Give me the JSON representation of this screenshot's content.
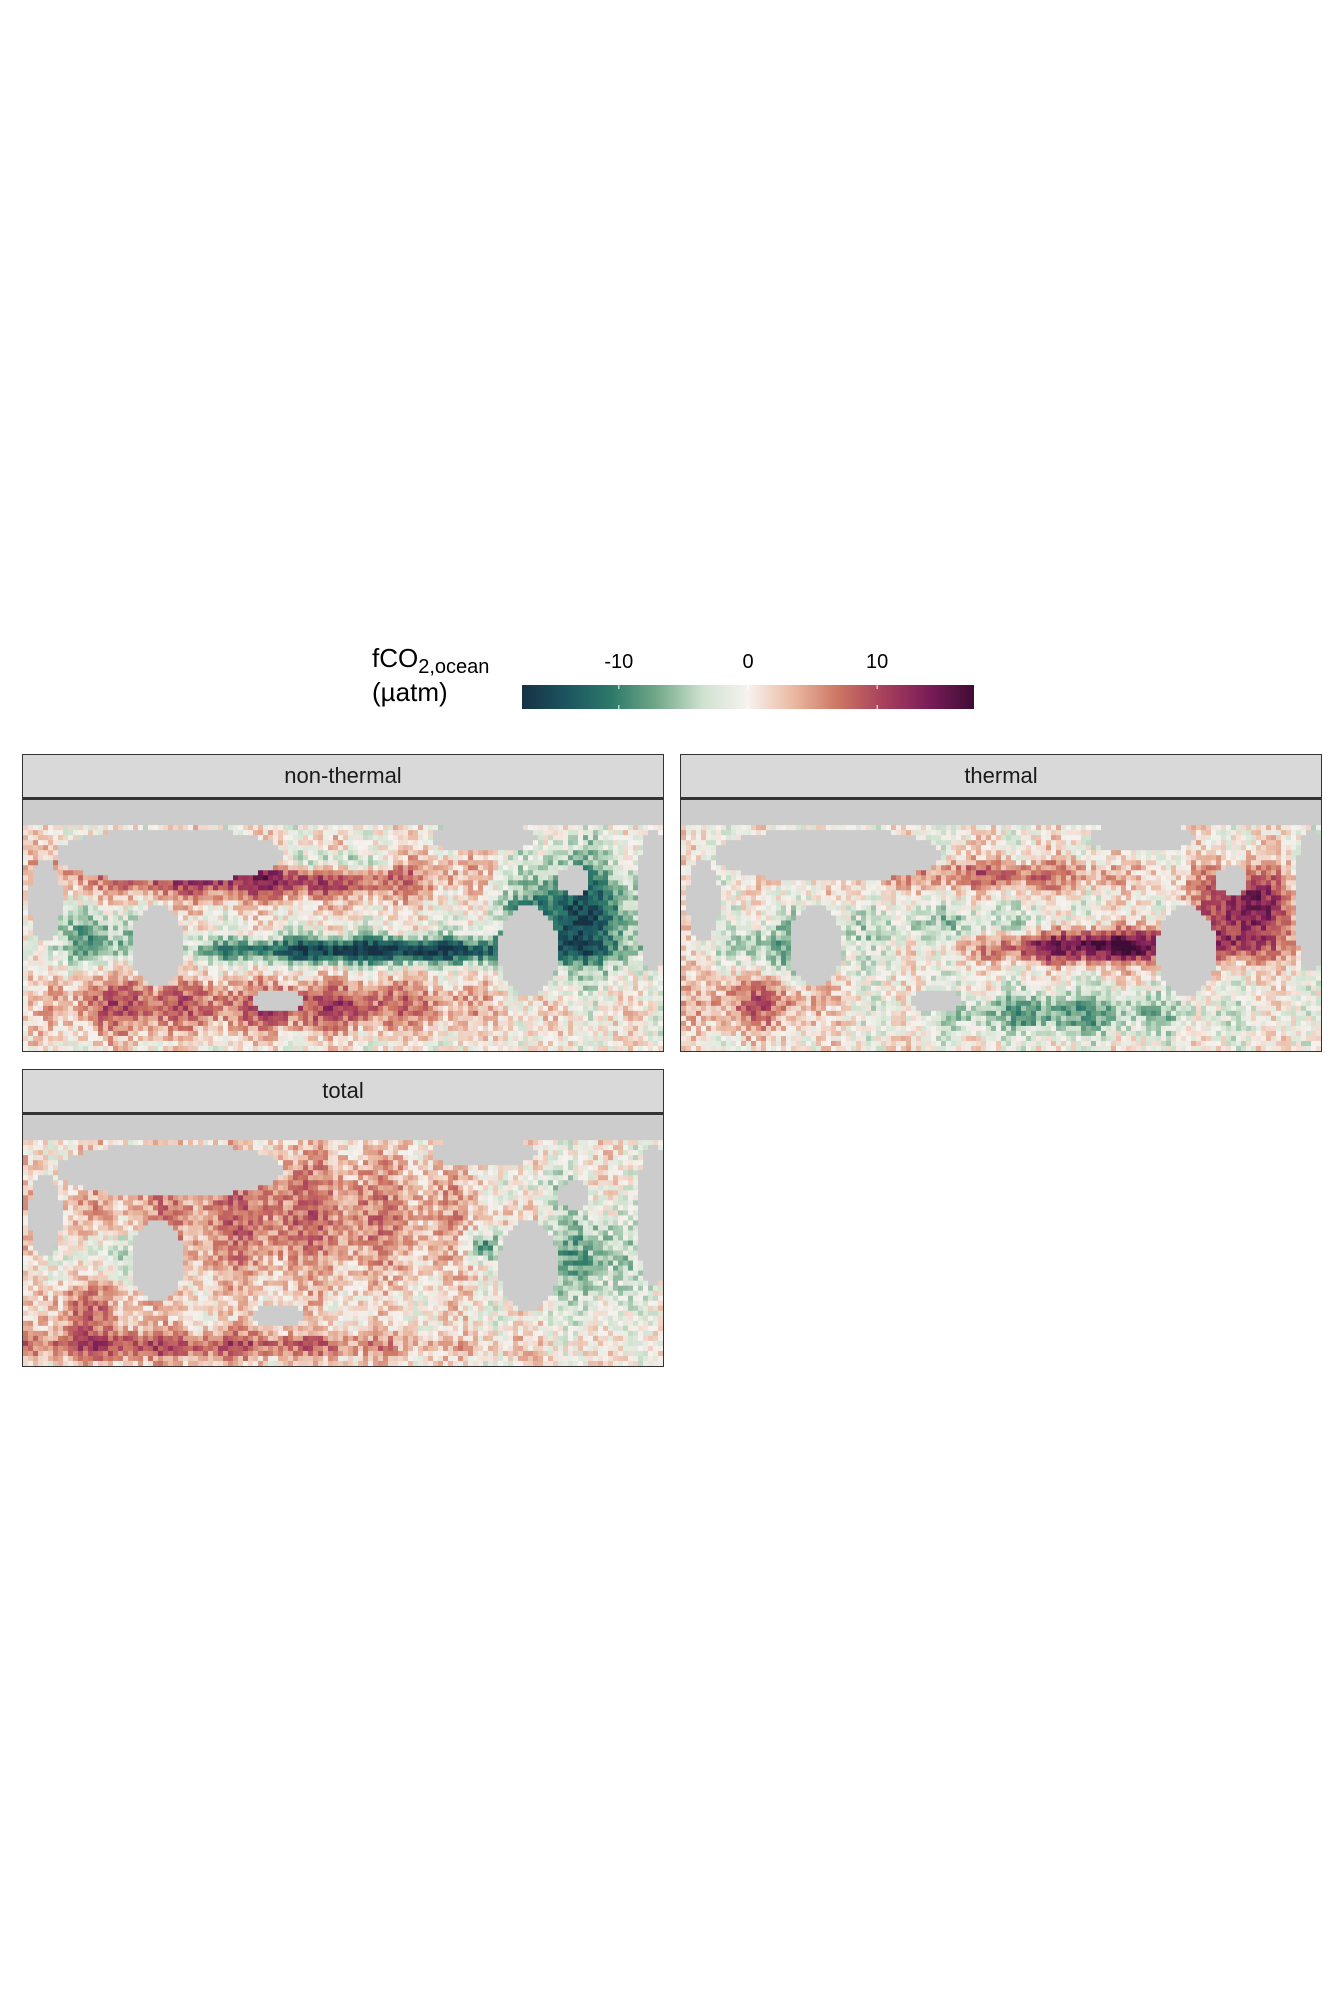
{
  "legend": {
    "title_main": "fCO",
    "title_sub": "2,ocean",
    "title_unit": "(µatm)",
    "ticks": [
      {
        "value": -10,
        "label": "-10"
      },
      {
        "value": 0,
        "label": "0"
      },
      {
        "value": 10,
        "label": "10"
      }
    ],
    "range": [
      -17.5,
      17.5
    ],
    "palette": [
      "#173244",
      "#1c5560",
      "#2e7a6a",
      "#74a98a",
      "#cfe2cf",
      "#f7f2ef",
      "#eab9a2",
      "#cc7563",
      "#a8405c",
      "#7a1d58",
      "#3f0c35"
    ],
    "missing_color": "#cccccc"
  },
  "panels": [
    {
      "id": "non-thermal",
      "label": "non-thermal"
    },
    {
      "id": "thermal",
      "label": "thermal"
    },
    {
      "id": "total",
      "label": "total"
    }
  ],
  "chart_data": {
    "type": "heatmap",
    "facets": [
      "non-thermal",
      "thermal",
      "total"
    ],
    "color_scale": "diverging, -17.5 to 17.5 µatm",
    "land_color": "#cccccc"
  }
}
